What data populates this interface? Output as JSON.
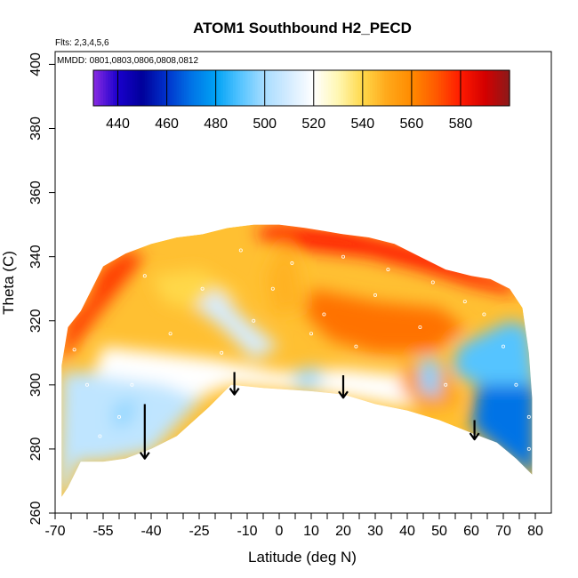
{
  "chart_data": {
    "type": "heatmap",
    "title": "ATOM1 Southbound H2_PECD",
    "subtitle_flights": "Flts: 2,3,4,5,6",
    "subtitle_dates": "MMDD: 0801,0803,0806,0808,0812",
    "xlabel": "Latitude (deg N)",
    "ylabel": "Theta (C)",
    "xlim": [
      -70,
      85
    ],
    "ylim": [
      260,
      404
    ],
    "x_ticks": [
      -70,
      -55,
      -40,
      -25,
      -10,
      0,
      10,
      20,
      30,
      40,
      50,
      60,
      70,
      80
    ],
    "x_ticks_labels": [
      "-70",
      "-55",
      "-40",
      "-25",
      "-10",
      "0",
      "10",
      "20",
      "30",
      "40",
      "50",
      "60",
      "70",
      "80"
    ],
    "x_minor_ticks": [
      -65,
      -60,
      -50,
      -45,
      -35,
      -30,
      -20,
      -15,
      -5,
      5,
      15,
      25,
      35,
      45,
      55,
      65,
      75
    ],
    "y_ticks": [
      260,
      280,
      300,
      320,
      340,
      360,
      380,
      400
    ],
    "y_ticks_labels": [
      "260",
      "280",
      "300",
      "320",
      "340",
      "360",
      "380",
      "400"
    ],
    "colorbar": {
      "range": [
        430,
        600
      ],
      "ticks": [
        440,
        460,
        480,
        500,
        520,
        540,
        560,
        580
      ],
      "ticks_labels": [
        "440",
        "460",
        "480",
        "500",
        "520",
        "540",
        "560",
        "580"
      ],
      "stops": [
        {
          "value": 430,
          "color": "#8a2be2"
        },
        {
          "value": 440,
          "color": "#1a00cc"
        },
        {
          "value": 450,
          "color": "#00009a"
        },
        {
          "value": 460,
          "color": "#0033cc"
        },
        {
          "value": 470,
          "color": "#0073e6"
        },
        {
          "value": 480,
          "color": "#00a2f5"
        },
        {
          "value": 490,
          "color": "#55c4ff"
        },
        {
          "value": 500,
          "color": "#a8ddff"
        },
        {
          "value": 510,
          "color": "#d5ecff"
        },
        {
          "value": 520,
          "color": "#ffffff"
        },
        {
          "value": 530,
          "color": "#fff7b2"
        },
        {
          "value": 540,
          "color": "#ffd84a"
        },
        {
          "value": 550,
          "color": "#ffa81a"
        },
        {
          "value": 560,
          "color": "#ff8a00"
        },
        {
          "value": 570,
          "color": "#ff5a00"
        },
        {
          "value": 580,
          "color": "#ff1a00"
        },
        {
          "value": 590,
          "color": "#d40000"
        },
        {
          "value": 600,
          "color": "#8b1a1a"
        }
      ]
    },
    "domain_top": [
      [
        -68,
        306
      ],
      [
        -66,
        318
      ],
      [
        -62,
        323
      ],
      [
        -58,
        331
      ],
      [
        -55,
        337
      ],
      [
        -48,
        341
      ],
      [
        -40,
        344
      ],
      [
        -32,
        346
      ],
      [
        -24,
        347
      ],
      [
        -16,
        349
      ],
      [
        -8,
        350
      ],
      [
        0,
        350
      ],
      [
        8,
        349
      ],
      [
        14,
        348
      ],
      [
        20,
        347
      ],
      [
        28,
        346
      ],
      [
        36,
        344
      ],
      [
        44,
        340
      ],
      [
        52,
        336
      ],
      [
        60,
        334
      ],
      [
        66,
        333
      ],
      [
        72,
        330
      ],
      [
        76,
        324
      ],
      [
        78,
        310
      ],
      [
        79,
        296
      ],
      [
        79,
        272
      ]
    ],
    "domain_bottom": [
      [
        79,
        272
      ],
      [
        74,
        277
      ],
      [
        68,
        282
      ],
      [
        60,
        285
      ],
      [
        50,
        289
      ],
      [
        40,
        292
      ],
      [
        30,
        294
      ],
      [
        20,
        297
      ],
      [
        10,
        298
      ],
      [
        -5,
        299
      ],
      [
        -15,
        300
      ],
      [
        -22,
        293
      ],
      [
        -32,
        284
      ],
      [
        -40,
        280
      ],
      [
        -48,
        277
      ],
      [
        -55,
        276
      ],
      [
        -62,
        276
      ],
      [
        -66,
        268
      ],
      [
        -68,
        265
      ]
    ],
    "zones": [
      {
        "value": 470,
        "points": [
          [
            62,
            300
          ],
          [
            80,
            300
          ],
          [
            80,
            271
          ],
          [
            66,
            282
          ],
          [
            60,
            287
          ]
        ]
      },
      {
        "value": 490,
        "points": [
          [
            56,
            312
          ],
          [
            72,
            320
          ],
          [
            78,
            318
          ],
          [
            80,
            300
          ],
          [
            62,
            300
          ],
          [
            54,
            304
          ]
        ]
      },
      {
        "value": 505,
        "points": [
          [
            -68,
            304
          ],
          [
            -30,
            304
          ],
          [
            -20,
            300
          ],
          [
            -40,
            279
          ],
          [
            -56,
            276
          ],
          [
            -63,
            276
          ],
          [
            -66,
            266
          ],
          [
            -69,
            266
          ]
        ]
      },
      {
        "value": 520,
        "points": [
          [
            -55,
            312
          ],
          [
            -20,
            308
          ],
          [
            0,
            304
          ],
          [
            20,
            305
          ],
          [
            40,
            303
          ],
          [
            48,
            300
          ],
          [
            40,
            293
          ],
          [
            10,
            298
          ],
          [
            -15,
            300
          ],
          [
            -26,
            296
          ],
          [
            -36,
            300
          ],
          [
            -58,
            303
          ]
        ]
      },
      {
        "value": 575,
        "points": [
          [
            -69,
            306
          ],
          [
            -66,
            320
          ],
          [
            -60,
            326
          ],
          [
            -56,
            336
          ],
          [
            -48,
            342
          ],
          [
            -42,
            340
          ],
          [
            -50,
            330
          ],
          [
            -58,
            320
          ],
          [
            -64,
            312
          ]
        ]
      },
      {
        "value": 580,
        "points": [
          [
            -8,
            348
          ],
          [
            0,
            350
          ],
          [
            10,
            349
          ],
          [
            20,
            348
          ],
          [
            34,
            345
          ],
          [
            46,
            342
          ],
          [
            60,
            336
          ],
          [
            72,
            332
          ],
          [
            74,
            328
          ],
          [
            60,
            331
          ],
          [
            44,
            336
          ],
          [
            28,
            340
          ],
          [
            10,
            342
          ],
          [
            -4,
            345
          ]
        ]
      },
      {
        "value": 565,
        "points": [
          [
            10,
            330
          ],
          [
            30,
            326
          ],
          [
            50,
            324
          ],
          [
            58,
            318
          ],
          [
            48,
            310
          ],
          [
            30,
            310
          ],
          [
            16,
            314
          ],
          [
            8,
            322
          ]
        ]
      },
      {
        "value": 555,
        "points": [
          [
            38,
            306
          ],
          [
            52,
            306
          ],
          [
            56,
            294
          ],
          [
            46,
            292
          ],
          [
            38,
            298
          ]
        ]
      },
      {
        "value": 540,
        "points": [
          [
            -40,
            334
          ],
          [
            -25,
            336
          ],
          [
            -12,
            328
          ],
          [
            -22,
            322
          ],
          [
            -36,
            326
          ]
        ]
      },
      {
        "value": 548,
        "points": [
          [
            2,
            346
          ],
          [
            6,
            336
          ],
          [
            8,
            324
          ],
          [
            -2,
            322
          ],
          [
            -4,
            334
          ]
        ]
      },
      {
        "value": 510,
        "points": [
          [
            -20,
            330
          ],
          [
            -10,
            320
          ],
          [
            0,
            312
          ],
          [
            -8,
            308
          ],
          [
            -18,
            318
          ],
          [
            -26,
            324
          ]
        ]
      },
      {
        "value": 498,
        "points": [
          [
            -52,
            294
          ],
          [
            -44,
            296
          ],
          [
            -46,
            288
          ],
          [
            -52,
            286
          ]
        ]
      },
      {
        "value": 495,
        "points": [
          [
            44,
            308
          ],
          [
            50,
            308
          ],
          [
            50,
            296
          ],
          [
            44,
            298
          ]
        ]
      },
      {
        "value": 500,
        "points": [
          [
            4,
            304
          ],
          [
            12,
            306
          ],
          [
            14,
            300
          ],
          [
            6,
            298
          ]
        ]
      }
    ],
    "annotations": {
      "arrows": [
        {
          "x": -42,
          "y_top": 294,
          "y_bottom": 277
        },
        {
          "x": -14,
          "y_top": 304,
          "y_bottom": 297
        },
        {
          "x": 20,
          "y_top": 303,
          "y_bottom": 296
        },
        {
          "x": 61,
          "y_top": 289,
          "y_bottom": 283
        }
      ],
      "sample_points": [
        [
          -64,
          311
        ],
        [
          -60,
          300
        ],
        [
          -56,
          284
        ],
        [
          -50,
          290
        ],
        [
          -46,
          300
        ],
        [
          -42,
          334
        ],
        [
          -34,
          316
        ],
        [
          -28,
          302
        ],
        [
          -24,
          330
        ],
        [
          -18,
          310
        ],
        [
          -12,
          342
        ],
        [
          -8,
          320
        ],
        [
          -2,
          330
        ],
        [
          4,
          338
        ],
        [
          10,
          316
        ],
        [
          14,
          322
        ],
        [
          20,
          340
        ],
        [
          24,
          312
        ],
        [
          30,
          328
        ],
        [
          34,
          336
        ],
        [
          40,
          344
        ],
        [
          44,
          318
        ],
        [
          48,
          332
        ],
        [
          52,
          300
        ],
        [
          58,
          326
        ],
        [
          64,
          322
        ],
        [
          70,
          312
        ],
        [
          74,
          300
        ],
        [
          78,
          280
        ],
        [
          78,
          290
        ]
      ]
    }
  }
}
